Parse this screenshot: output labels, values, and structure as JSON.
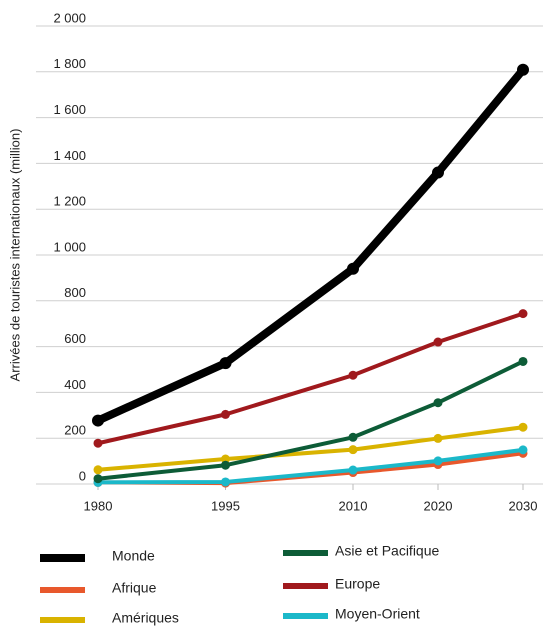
{
  "chart_data": {
    "type": "line",
    "y_label": "Arrivées de touristes internationaux (million)",
    "x": [
      1980,
      1995,
      2010,
      2020,
      2030
    ],
    "xlim": [
      1980,
      2030
    ],
    "xticks": [
      1980,
      1995,
      2010,
      2020,
      2030
    ],
    "ylim": [
      0,
      2000
    ],
    "yticks": [
      0,
      200,
      400,
      600,
      800,
      {
        "value": 1000,
        "label": "1 000"
      },
      {
        "value": 1200,
        "label": "1 200"
      },
      {
        "value": 1400,
        "label": "1 400"
      },
      {
        "value": 1600,
        "label": "1 600"
      },
      {
        "value": 1800,
        "label": "1 800"
      },
      {
        "value": 2000,
        "label": "2 000"
      }
    ],
    "grid": true,
    "series": [
      {
        "name": "Monde",
        "color": "#000000",
        "values": [
          277,
          528,
          940,
          1360,
          1809
        ]
      },
      {
        "name": "Afrique",
        "color": "#e8582c",
        "values": [
          7,
          4,
          50,
          85,
          134
        ]
      },
      {
        "name": "Amériques",
        "color": "#d9b300",
        "values": [
          62,
          109,
          150,
          199,
          248
        ]
      },
      {
        "name": "Asie et Pacifique",
        "color": "#0d5c37",
        "values": [
          23,
          82,
          204,
          355,
          535
        ]
      },
      {
        "name": "Europe",
        "color": "#a0191d",
        "values": [
          178,
          304,
          475,
          620,
          744
        ]
      },
      {
        "name": "Moyen-Orient",
        "color": "#1bb8c9",
        "values": [
          7,
          9,
          61,
          101,
          149
        ]
      }
    ]
  }
}
